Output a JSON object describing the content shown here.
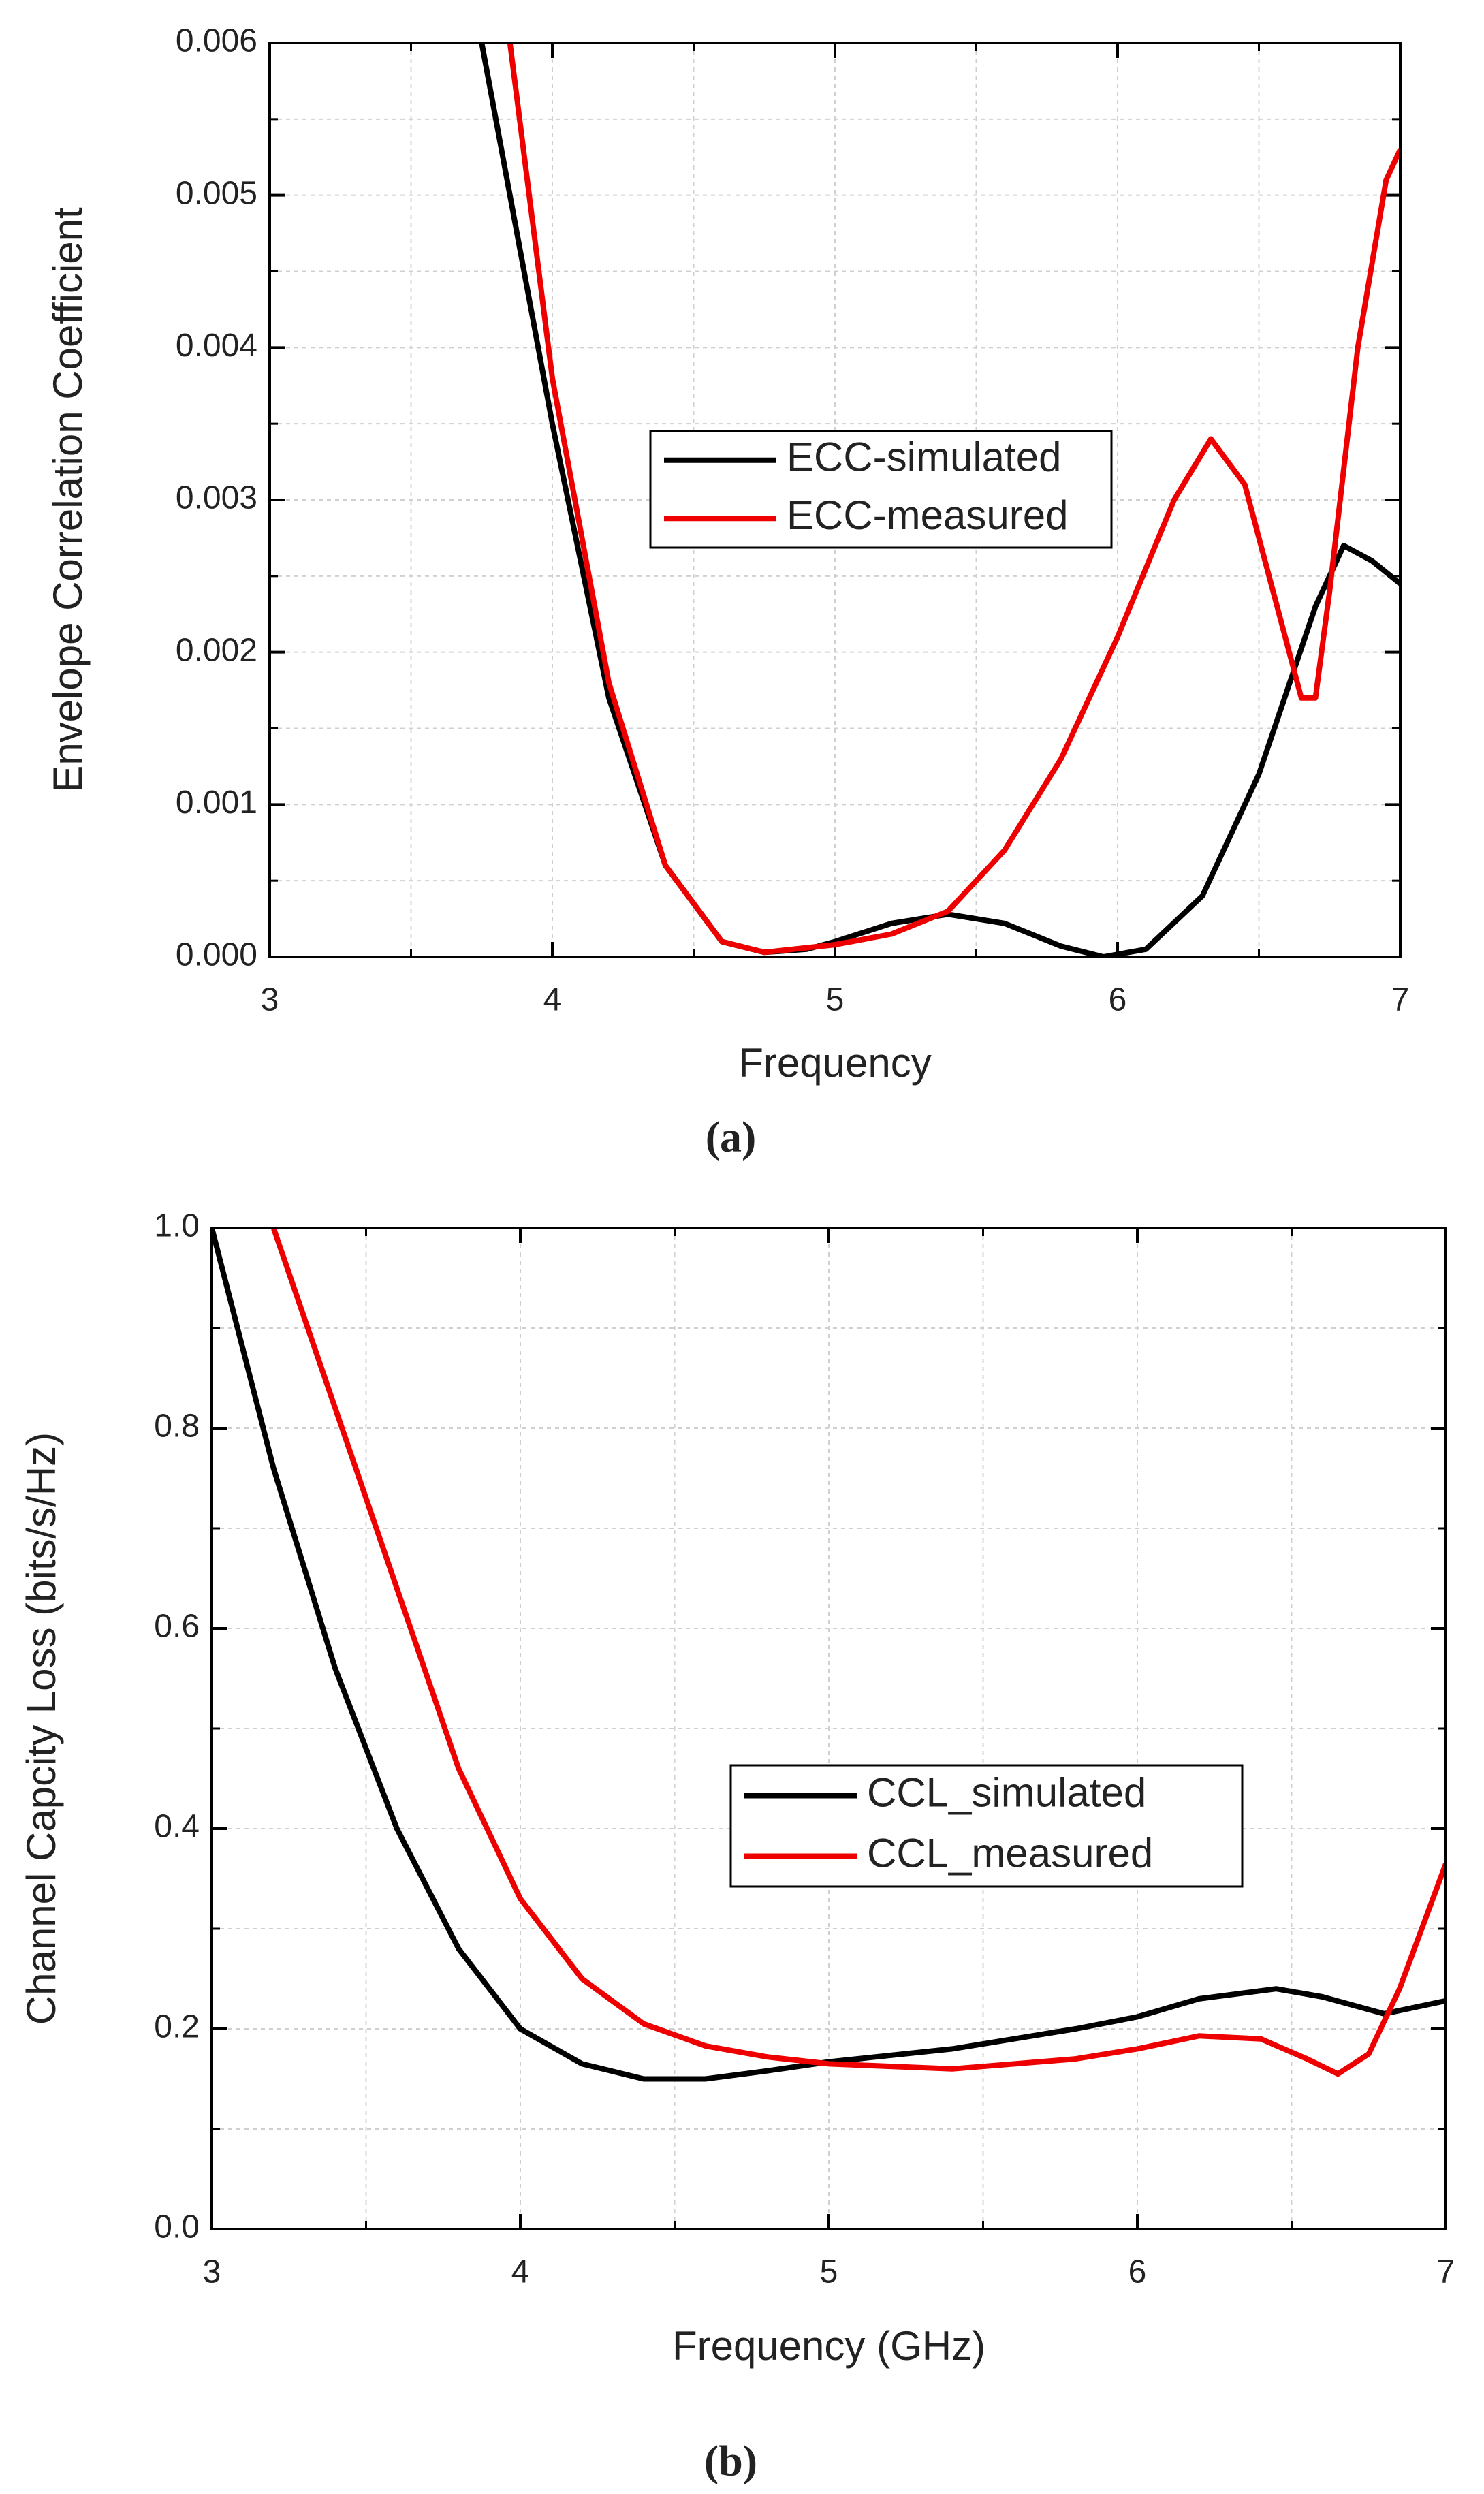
{
  "chart_data": [
    {
      "type": "line",
      "caption": "(a)",
      "x_label": "Frequency",
      "y_label": "Envelope Correlation Coefficient",
      "xlim": [
        3,
        7
      ],
      "xticks": [
        3,
        4,
        5,
        6,
        7
      ],
      "xminor_ticks": [
        3.5,
        4.5,
        5.5,
        6.5
      ],
      "ylim": [
        0,
        0.006
      ],
      "yticks": [
        {
          "value": 0,
          "label": "0.000"
        },
        {
          "value": 0.001,
          "label": "0.001"
        },
        {
          "value": 0.002,
          "label": "0.002"
        },
        {
          "value": 0.003,
          "label": "0.003"
        },
        {
          "value": 0.004,
          "label": "0.004"
        },
        {
          "value": 0.005,
          "label": "0.005"
        },
        {
          "value": 0.006,
          "label": "0.006"
        }
      ],
      "yminor_ticks": [
        0.0005,
        0.0015,
        0.0025,
        0.0035,
        0.0045,
        0.0055
      ],
      "grid": true,
      "legend": "center",
      "series": [
        {
          "name": "ECC-simulated",
          "color": "#000000",
          "x": [
            3.75,
            3.9,
            4.0,
            4.2,
            4.4,
            4.6,
            4.75,
            4.9,
            5.0,
            5.2,
            5.4,
            5.6,
            5.8,
            5.95,
            6.1,
            6.3,
            6.5,
            6.7,
            6.8,
            6.9,
            7.0
          ],
          "values": [
            0.006,
            0.0045,
            0.0035,
            0.0017,
            0.0006,
            0.0001,
            3e-05,
            5e-05,
            0.0001,
            0.00022,
            0.00028,
            0.00022,
            7e-05,
            0.0,
            5e-05,
            0.0004,
            0.0012,
            0.0023,
            0.0027,
            0.0026,
            0.00245
          ]
        },
        {
          "name": "ECC-measured",
          "color": "#ee0000",
          "x": [
            3.85,
            4.0,
            4.2,
            4.4,
            4.6,
            4.75,
            5.0,
            5.2,
            5.4,
            5.6,
            5.8,
            6.0,
            6.2,
            6.33,
            6.45,
            6.55,
            6.65,
            6.7,
            6.75,
            6.85,
            6.95,
            7.0
          ],
          "values": [
            0.006,
            0.0038,
            0.0018,
            0.0006,
            0.0001,
            3e-05,
            8e-05,
            0.00015,
            0.0003,
            0.0007,
            0.0013,
            0.0021,
            0.003,
            0.0034,
            0.0031,
            0.0024,
            0.0017,
            0.0017,
            0.0024,
            0.004,
            0.0051,
            0.0053
          ]
        }
      ]
    },
    {
      "type": "line",
      "caption": "(b)",
      "x_label": "Frequency (GHz)",
      "y_label": "Channel Capcity Loss (bits/s/Hz)",
      "xlim": [
        3,
        7
      ],
      "xticks": [
        3,
        4,
        5,
        6,
        7
      ],
      "xminor_ticks": [
        3.5,
        4.5,
        5.5,
        6.5
      ],
      "ylim": [
        0,
        1
      ],
      "yticks": [
        {
          "value": 0,
          "label": "0.0"
        },
        0.2,
        0.4,
        0.6,
        0.8,
        {
          "value": 1,
          "label": "1.0"
        }
      ],
      "yminor_ticks": [
        0.1,
        0.3,
        0.5,
        0.7,
        0.9
      ],
      "grid": true,
      "legend": "right",
      "series": [
        {
          "name": "CCL_simulated",
          "color": "#000000",
          "x": [
            3.0,
            3.2,
            3.4,
            3.6,
            3.8,
            4.0,
            4.2,
            4.4,
            4.6,
            4.8,
            5.0,
            5.4,
            5.8,
            6.0,
            6.2,
            6.45,
            6.6,
            6.8,
            7.0
          ],
          "values": [
            1.0,
            0.76,
            0.56,
            0.4,
            0.28,
            0.2,
            0.165,
            0.15,
            0.15,
            0.158,
            0.167,
            0.18,
            0.2,
            0.212,
            0.23,
            0.24,
            0.232,
            0.215,
            0.228
          ]
        },
        {
          "name": "CCL_measured",
          "color": "#ee0000",
          "x": [
            3.2,
            3.4,
            3.6,
            3.8,
            4.0,
            4.2,
            4.4,
            4.6,
            4.8,
            5.0,
            5.4,
            5.8,
            6.0,
            6.2,
            6.4,
            6.55,
            6.65,
            6.75,
            6.85,
            7.0
          ],
          "values": [
            1.0,
            0.82,
            0.64,
            0.46,
            0.33,
            0.25,
            0.205,
            0.183,
            0.172,
            0.165,
            0.16,
            0.17,
            0.18,
            0.193,
            0.19,
            0.17,
            0.155,
            0.175,
            0.24,
            0.365
          ]
        }
      ]
    }
  ]
}
